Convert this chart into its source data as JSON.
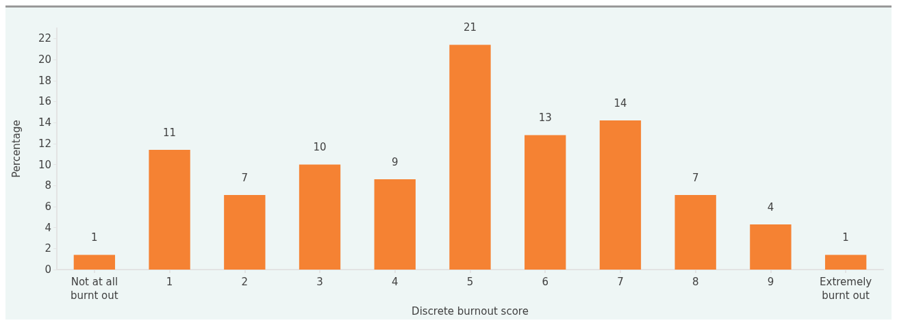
{
  "chart_data": {
    "type": "bar",
    "xlabel": "Discrete burnout score",
    "ylabel": "Percentage",
    "categories": [
      "Not at all\nburnt out",
      "1",
      "2",
      "3",
      "4",
      "5",
      "6",
      "7",
      "8",
      "9",
      "Extremely\nburnt out"
    ],
    "values": [
      1.4,
      11.4,
      7.1,
      10.0,
      8.6,
      21.4,
      12.8,
      14.2,
      7.1,
      4.3,
      1.4
    ],
    "value_labels": [
      "1",
      "11",
      "7",
      "10",
      "9",
      "21",
      "13",
      "14",
      "7",
      "4",
      "1"
    ],
    "color": "#f58233",
    "ylim": [
      0,
      23
    ],
    "yticks": [
      0,
      2,
      4,
      6,
      8,
      10,
      12,
      14,
      16,
      18,
      20,
      22
    ],
    "grid": false
  }
}
